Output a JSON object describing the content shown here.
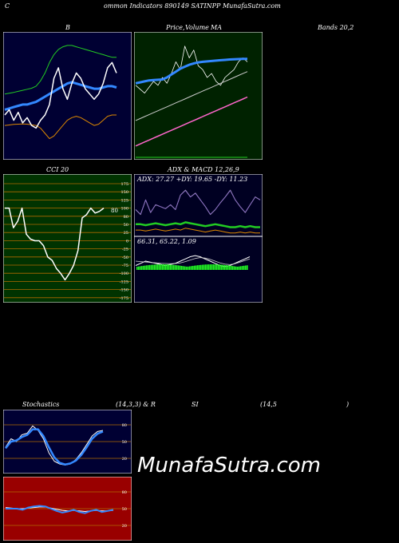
{
  "header": {
    "c": "C",
    "title": "ommon  Indicators 890149 SATINPP MunafaSutra.com"
  },
  "labels": {
    "bb": "B",
    "price": "Price,",
    "volume": "Volume",
    "ma": "MA",
    "bands": "Bands 20,2",
    "cci": "CCI 20",
    "adx_macd": "ADX  & MACD 12,26,9",
    "stoch": "Stochastics",
    "stoch_params": "(14,3,3) & R",
    "si": "SI",
    "rsi_params": "(14,5",
    "rsi_close": ")"
  },
  "watermark": "MunafaSutra.com",
  "colors": {
    "bb_bg": "#000033",
    "ma_bg": "#002200",
    "cci_bg": "#003300",
    "adx_bg": "#000022",
    "stoch_bg": "#000033",
    "rsi_bg": "#990000",
    "grid_orange": "#b06a00",
    "blue": "#3388ff",
    "green": "#22cc22",
    "orange": "#dd8800"
  },
  "chart_data": [
    {
      "type": "line",
      "panel": "bollinger",
      "series": [
        {
          "values": [
            54,
            56,
            52,
            55,
            51,
            53,
            50,
            49,
            52,
            54,
            58,
            68,
            72,
            64,
            60,
            66,
            70,
            68,
            64,
            62,
            60,
            62,
            66,
            72,
            74,
            70
          ]
        },
        {
          "values": [
            56,
            56.5,
            57,
            57.5,
            58,
            58,
            58.5,
            59,
            60,
            61,
            62,
            63,
            64,
            65,
            66,
            66.5,
            66,
            65.5,
            65,
            64.5,
            64,
            64,
            64.5,
            65,
            65,
            64.5
          ]
        },
        {
          "values": [
            62,
            62.3,
            62.6,
            63,
            63.4,
            63.8,
            64.2,
            65,
            67,
            70,
            74,
            77,
            79,
            80,
            80.5,
            80.5,
            80,
            79.5,
            79,
            78.5,
            78,
            77.5,
            77,
            76.5,
            76,
            76
          ]
        },
        {
          "values": [
            50,
            50.2,
            50.4,
            50.5,
            50.6,
            50.5,
            50.3,
            50,
            49,
            47,
            45,
            46,
            48,
            50,
            52,
            53,
            53.5,
            53,
            52,
            51,
            50,
            50.5,
            52,
            53.5,
            54,
            54
          ]
        }
      ]
    },
    {
      "type": "line",
      "panel": "price-ma",
      "series": [
        {
          "values": [
            66,
            64,
            62,
            65,
            68,
            66,
            70,
            67,
            72,
            78,
            74,
            86,
            80,
            84,
            76,
            74,
            70,
            72,
            68,
            66,
            70,
            72,
            74,
            78,
            80,
            78
          ]
        },
        {
          "values": [
            67,
            67.5,
            68,
            68.5,
            68.7,
            68.8,
            69,
            70,
            71.5,
            73,
            74.5,
            75.5,
            76.5,
            77.2,
            77.7,
            78,
            78.2,
            78.4,
            78.6,
            78.8,
            79,
            79.2,
            79.3,
            79.4,
            79.5,
            79.5
          ]
        },
        {
          "values": [
            48,
            49,
            50,
            51,
            52,
            53,
            54,
            55,
            56,
            57,
            58,
            59,
            60,
            61,
            62,
            63,
            64,
            65,
            66,
            67,
            68,
            69,
            70,
            71,
            72,
            73
          ]
        },
        {
          "values": [
            35,
            36,
            37,
            38,
            39,
            40,
            41,
            42,
            43,
            44,
            45,
            46,
            47,
            48,
            49,
            50,
            51,
            52,
            53,
            54,
            55,
            56,
            57,
            58,
            59,
            60
          ]
        }
      ]
    },
    {
      "type": "line",
      "panel": "cci",
      "yticks": [
        175,
        150,
        125,
        100,
        80,
        50,
        25,
        0,
        -25,
        -50,
        -75,
        -100,
        -125,
        -150,
        -175
      ],
      "series": [
        {
          "values": [
            100,
            100,
            40,
            60,
            100,
            20,
            5,
            0,
            0,
            -15,
            -50,
            -60,
            -85,
            -100,
            -120,
            -100,
            -75,
            -30,
            70,
            80,
            100,
            85,
            90,
            100
          ]
        }
      ]
    },
    {
      "type": "line",
      "panel": "adx",
      "series": [
        {
          "values": [
            45,
            40,
            55,
            42,
            50,
            48,
            46,
            50,
            45,
            60,
            65,
            58,
            62,
            55,
            48,
            40,
            45,
            52,
            58,
            65,
            55,
            48,
            42,
            50,
            58,
            55
          ]
        },
        {
          "values": [
            30,
            30,
            29,
            30,
            31,
            30,
            29,
            30,
            31,
            30,
            32,
            31,
            30,
            29,
            28,
            29,
            30,
            29,
            28,
            27,
            27,
            28,
            27,
            28,
            27,
            27
          ]
        }
      ]
    },
    {
      "type": "line",
      "panel": "stochastics",
      "yticks": [
        80,
        50,
        20
      ],
      "series": [
        {
          "values": [
            40,
            55,
            50,
            62,
            65,
            78,
            70,
            55,
            30,
            15,
            10,
            8,
            10,
            18,
            30,
            45,
            60,
            68,
            70
          ]
        },
        {
          "values": [
            38,
            50,
            52,
            58,
            62,
            72,
            72,
            60,
            40,
            22,
            12,
            9,
            11,
            16,
            26,
            40,
            55,
            64,
            68
          ]
        }
      ]
    },
    {
      "type": "line",
      "panel": "rsi",
      "yticks": [
        80,
        50,
        20
      ],
      "series": [
        {
          "values": [
            50,
            50,
            50,
            48,
            52,
            54,
            55,
            54,
            50,
            46,
            43,
            45,
            48,
            44,
            42,
            46,
            48,
            44,
            46,
            48
          ]
        },
        {
          "values": [
            52,
            51,
            50,
            50,
            51,
            52,
            53,
            53,
            51,
            49,
            47,
            46,
            47,
            46,
            45,
            46,
            47,
            46,
            46,
            47
          ]
        }
      ]
    }
  ]
}
